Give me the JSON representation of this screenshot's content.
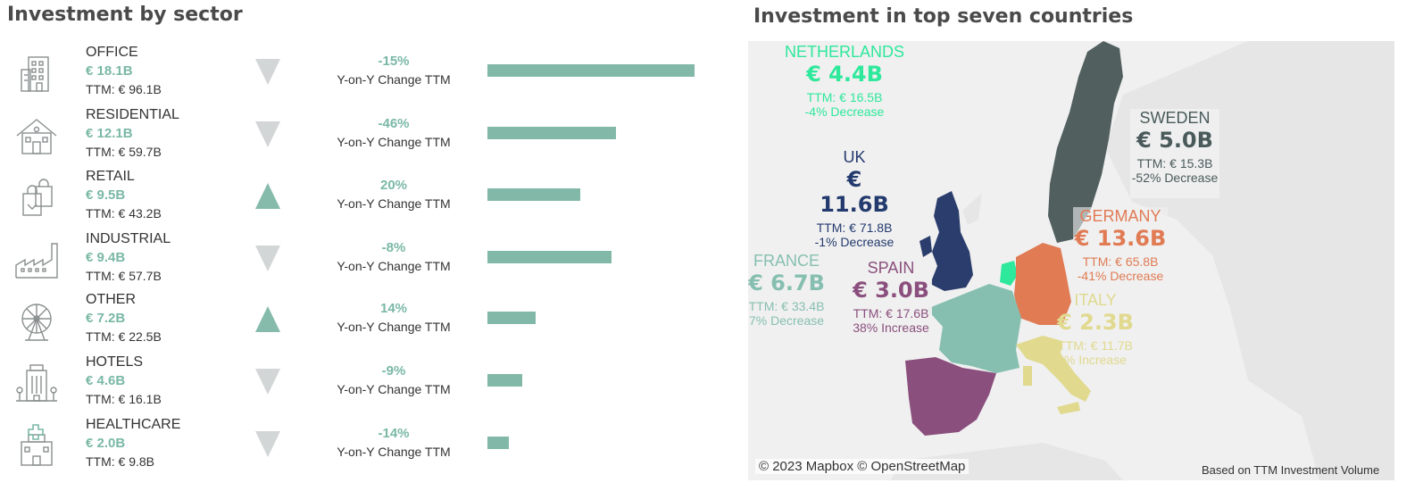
{
  "left_title": "Investment by sector",
  "right_title": "Investment in top seven countries",
  "sectors": [
    {
      "name": "OFFICE",
      "value": "€ 18.1B",
      "ttm": "TTM: € 96.1B",
      "change": "-15%",
      "change_label": "Y-on-Y Change TTM",
      "direction": "down",
      "icon": "office-building-icon",
      "ttm_billion": 96.1
    },
    {
      "name": "RESIDENTIAL",
      "value": "€ 12.1B",
      "ttm": "TTM: € 59.7B",
      "change": "-46%",
      "change_label": "Y-on-Y Change TTM",
      "direction": "down",
      "icon": "house-icon",
      "ttm_billion": 59.7
    },
    {
      "name": "RETAIL",
      "value": "€ 9.5B",
      "ttm": "TTM: € 43.2B",
      "change": "20%",
      "change_label": "Y-on-Y Change TTM",
      "direction": "up",
      "icon": "shopping-bag-icon",
      "ttm_billion": 43.2
    },
    {
      "name": "INDUSTRIAL",
      "value": "€ 9.4B",
      "ttm": "TTM: € 57.7B",
      "change": "-8%",
      "change_label": "Y-on-Y Change TTM",
      "direction": "down",
      "icon": "factory-icon",
      "ttm_billion": 57.7
    },
    {
      "name": "OTHER",
      "value": "€ 7.2B",
      "ttm": "TTM: € 22.5B",
      "change": "14%",
      "change_label": "Y-on-Y Change TTM",
      "direction": "up",
      "icon": "ferris-wheel-icon",
      "ttm_billion": 22.5
    },
    {
      "name": "HOTELS",
      "value": "€ 4.6B",
      "ttm": "TTM: € 16.1B",
      "change": "-9%",
      "change_label": "Y-on-Y Change TTM",
      "direction": "down",
      "icon": "hotel-icon",
      "ttm_billion": 16.1
    },
    {
      "name": "HEALTHCARE",
      "value": "€ 2.0B",
      "ttm": "TTM: € 9.8B",
      "change": "-14%",
      "change_label": "Y-on-Y Change TTM",
      "direction": "down",
      "icon": "hospital-icon",
      "ttm_billion": 9.8
    }
  ],
  "countries": [
    {
      "key": "netherlands",
      "name": "NETHERLANDS",
      "value": "€ 4.4B",
      "ttm": "TTM: € 16.5B",
      "change": "-4% Decrease",
      "color": "#2ee89b"
    },
    {
      "key": "sweden",
      "name": "SWEDEN",
      "value": "€ 5.0B",
      "ttm": "TTM: € 15.3B",
      "change": "-52% Decrease",
      "color": "#4a5a5a"
    },
    {
      "key": "uk",
      "name": "UK",
      "value": "€ 11.6B",
      "ttm": "TTM: € 71.8B",
      "change": "-1% Decrease",
      "color": "#233a6e"
    },
    {
      "key": "germany",
      "name": "GERMANY",
      "value": "€ 13.6B",
      "ttm": "TTM: € 65.8B",
      "change": "-41% Decrease",
      "color": "#e07b54"
    },
    {
      "key": "france",
      "name": "FRANCE",
      "value": "€ 6.7B",
      "ttm": "TTM: € 33.4B",
      "change": "7% Decrease",
      "color": "#86bfb0"
    },
    {
      "key": "spain",
      "name": "SPAIN",
      "value": "€ 3.0B",
      "ttm": "TTM: € 17.6B",
      "change": "38% Increase",
      "color": "#8a4f7d"
    },
    {
      "key": "italy",
      "name": "ITALY",
      "value": "€ 2.3B",
      "ttm": "TTM: € 11.7B",
      "change": "% Increase",
      "color": "#e0d98e"
    }
  ],
  "map_attribution": "© 2023 Mapbox © OpenStreetMap",
  "map_note": "Based on TTM Investment Volume",
  "colors": {
    "accent": "#7ab8a6",
    "arrow_down": "#d3d6d6",
    "arrow_up": "#86bbab",
    "bar": "#82b8a8"
  }
}
